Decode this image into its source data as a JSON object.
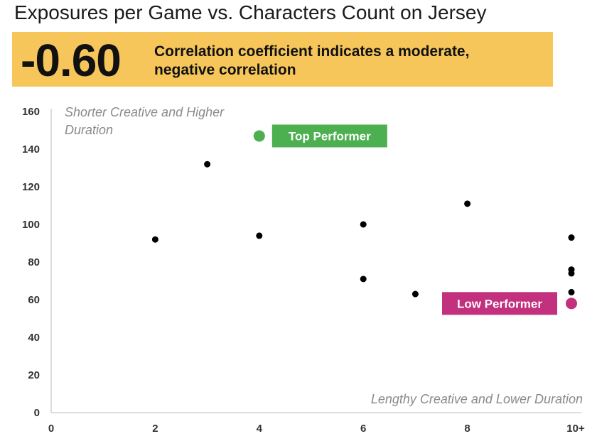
{
  "chart_data": {
    "type": "scatter",
    "title": "Exposures per Game vs. Characters Count on Jersey",
    "headline": {
      "value": "-0.60",
      "text_line1": "Correlation coefficient indicates a moderate,",
      "text_line2": "negative correlation"
    },
    "xlim": [
      0,
      10
    ],
    "ylim": [
      0,
      160
    ],
    "x_ticks": [
      {
        "value": 0,
        "label": "0"
      },
      {
        "value": 2,
        "label": "2"
      },
      {
        "value": 4,
        "label": "4"
      },
      {
        "value": 6,
        "label": "6"
      },
      {
        "value": 8,
        "label": "8"
      },
      {
        "value": 10,
        "label": "10+"
      }
    ],
    "y_ticks": [
      {
        "value": 0,
        "label": "0"
      },
      {
        "value": 20,
        "label": "20"
      },
      {
        "value": 40,
        "label": "40"
      },
      {
        "value": 60,
        "label": "60"
      },
      {
        "value": 80,
        "label": "80"
      },
      {
        "value": 100,
        "label": "100"
      },
      {
        "value": 120,
        "label": "120"
      },
      {
        "value": 140,
        "label": "140"
      },
      {
        "value": 160,
        "label": "160"
      }
    ],
    "points": [
      {
        "x": 2,
        "y": 92
      },
      {
        "x": 3,
        "y": 132
      },
      {
        "x": 4,
        "y": 94
      },
      {
        "x": 6,
        "y": 100
      },
      {
        "x": 6,
        "y": 71
      },
      {
        "x": 7,
        "y": 63
      },
      {
        "x": 8,
        "y": 111
      },
      {
        "x": 10,
        "y": 93
      },
      {
        "x": 10,
        "y": 76
      },
      {
        "x": 10,
        "y": 74
      },
      {
        "x": 10,
        "y": 64
      }
    ],
    "highlights": [
      {
        "x": 4,
        "y": 147,
        "label": "Top Performer",
        "color": "#4caf50"
      },
      {
        "x": 10,
        "y": 58,
        "label": "Low Performer",
        "color": "#c2307e"
      }
    ],
    "annotations": {
      "top_left_line1": "Shorter Creative and Higher",
      "top_left_line2": "Duration",
      "bottom_right": "Lengthy Creative and Lower Duration"
    },
    "point_color": "#000000",
    "banner_color": "#f6c65a",
    "grid": false
  }
}
